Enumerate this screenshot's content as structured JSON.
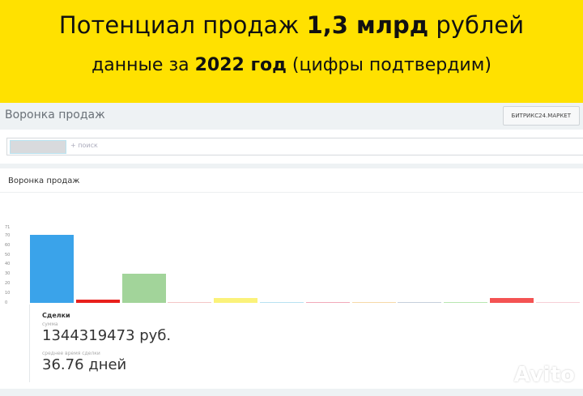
{
  "banner": {
    "line1_pre": "Потенциал продаж ",
    "line1_bold": "1,3 млрд",
    "line1_post": " рублей",
    "line2_pre": "данные за ",
    "line2_bold": "2022 год",
    "line2_post": " (цифры подтвердим)"
  },
  "header": {
    "title": "Воронка продаж",
    "market_button": "БИТРИКС24.МАРКЕТ"
  },
  "search": {
    "placeholder": "+ поиск"
  },
  "card": {
    "title": "Воронка продаж"
  },
  "chart_data": {
    "type": "bar",
    "yticks": [
      0,
      10,
      20,
      30,
      40,
      50,
      60,
      70,
      71
    ],
    "ylim": [
      0,
      71
    ],
    "values": [
      71,
      3,
      30,
      0.5,
      5,
      1,
      1,
      0.5,
      0.5,
      0.5,
      5,
      0.5
    ],
    "colors": [
      "#3aa3ea",
      "#e8201c",
      "#a2d49a",
      "#f4c6c6",
      "#fbf27a",
      "#b8e2f2",
      "#f2a9b9",
      "#f7d9a8",
      "#c5cfdc",
      "#b8e6b0",
      "#f45353",
      "#f6cfd6"
    ]
  },
  "stats": {
    "title": "Сделки",
    "sum_label": "сумма",
    "sum_value": "1344319473 руб.",
    "avg_label": "среднее время сделки",
    "avg_value": "36.76 дней"
  },
  "watermark": "Avito"
}
